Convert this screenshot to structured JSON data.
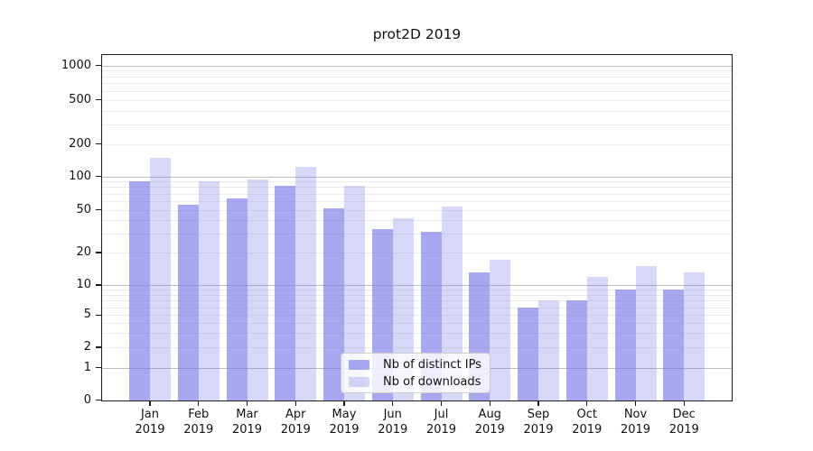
{
  "chart_data": {
    "type": "bar",
    "title": "prot2D 2019",
    "x_categories": [
      "Jan",
      "Feb",
      "Mar",
      "Apr",
      "May",
      "Jun",
      "Jul",
      "Aug",
      "Sep",
      "Oct",
      "Nov",
      "Dec"
    ],
    "x_sub_label": "2019",
    "series": [
      {
        "name": "Nb of distinct IPs",
        "color": "rgba(123,123,232,0.66)",
        "values": [
          90,
          56,
          63,
          82,
          52,
          33,
          31,
          13,
          6,
          7,
          9,
          9
        ]
      },
      {
        "name": "Nb of downloads",
        "color": "rgba(123,123,232,0.30)",
        "values": [
          148,
          90,
          94,
          123,
          82,
          42,
          54,
          17,
          7,
          12,
          15,
          13
        ]
      }
    ],
    "y_axis": {
      "ticks": [
        0,
        1,
        2,
        5,
        10,
        20,
        50,
        100,
        200,
        500,
        1000
      ],
      "scale": "symlog-like",
      "range": [
        0,
        1000
      ]
    },
    "grid": {
      "major_values": [
        1,
        10,
        100,
        1000
      ],
      "minor_values": [
        2,
        3,
        4,
        5,
        6,
        7,
        8,
        9,
        20,
        30,
        40,
        50,
        60,
        70,
        80,
        90,
        200,
        300,
        400,
        500,
        600,
        700,
        800,
        900
      ],
      "major_color": "#bdbdbd",
      "minor_color": "#ebebeb"
    },
    "legend": {
      "entries": [
        "Nb of distinct IPs",
        "Nb of downloads"
      ],
      "position": "lower center"
    }
  }
}
